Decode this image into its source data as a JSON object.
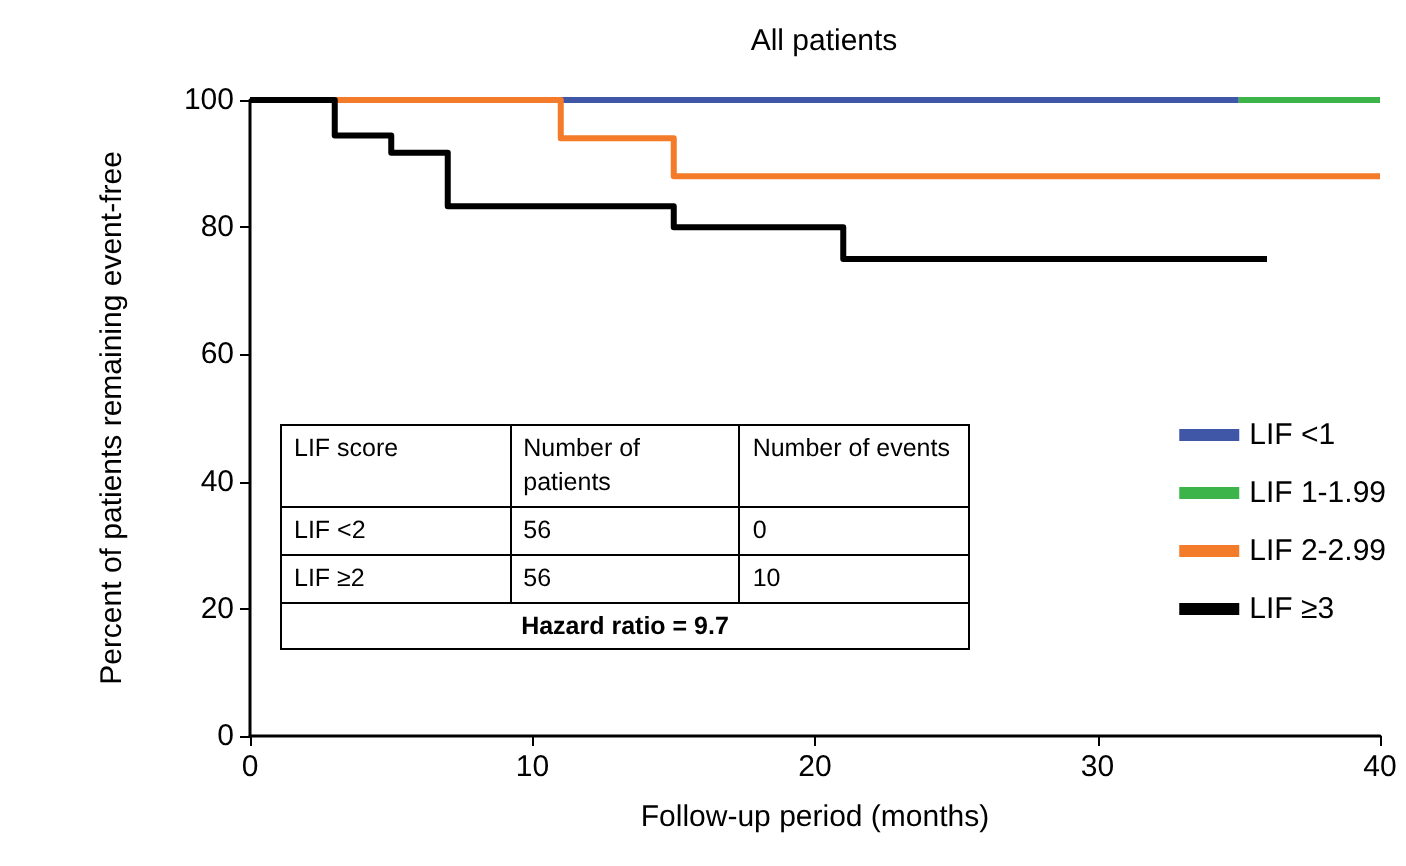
{
  "chart_data": {
    "type": "step",
    "title": "All patients",
    "xlabel": "Follow-up period (months)",
    "ylabel": "Percent of patients remaining event-free",
    "xlim": [
      0,
      40
    ],
    "xticks": [
      0,
      10,
      20,
      30,
      40
    ],
    "ylim": [
      0,
      100
    ],
    "yticks": [
      0,
      20,
      40,
      60,
      80,
      100
    ],
    "grid": false,
    "legend": "right",
    "marker": "none",
    "line_style": "solid",
    "series": [
      {
        "name": "LIF <1",
        "color": "#3f57a6",
        "x": [
          0,
          35
        ],
        "values": [
          100,
          100
        ]
      },
      {
        "name": "LIF 1-1.99",
        "color": "#3cb44a",
        "x": [
          35,
          40
        ],
        "values": [
          100,
          100
        ]
      },
      {
        "name": "LIF 2-2.99",
        "color": "#f47b2a",
        "x": [
          0,
          11,
          15,
          40
        ],
        "values": [
          100,
          94,
          88,
          88
        ]
      },
      {
        "name": "LIF ≥3",
        "color": "#000000",
        "x": [
          0,
          3,
          5,
          7,
          15,
          21,
          36
        ],
        "values": [
          100,
          94.4,
          91.7,
          83.3,
          80,
          75,
          75
        ]
      }
    ],
    "annotations": [
      "LIF score",
      "Number of patients",
      "Number of events",
      "LIF <2",
      "56",
      "0",
      "LIF ≥2",
      "56",
      "10",
      "Hazard ratio = 9.7"
    ]
  }
}
